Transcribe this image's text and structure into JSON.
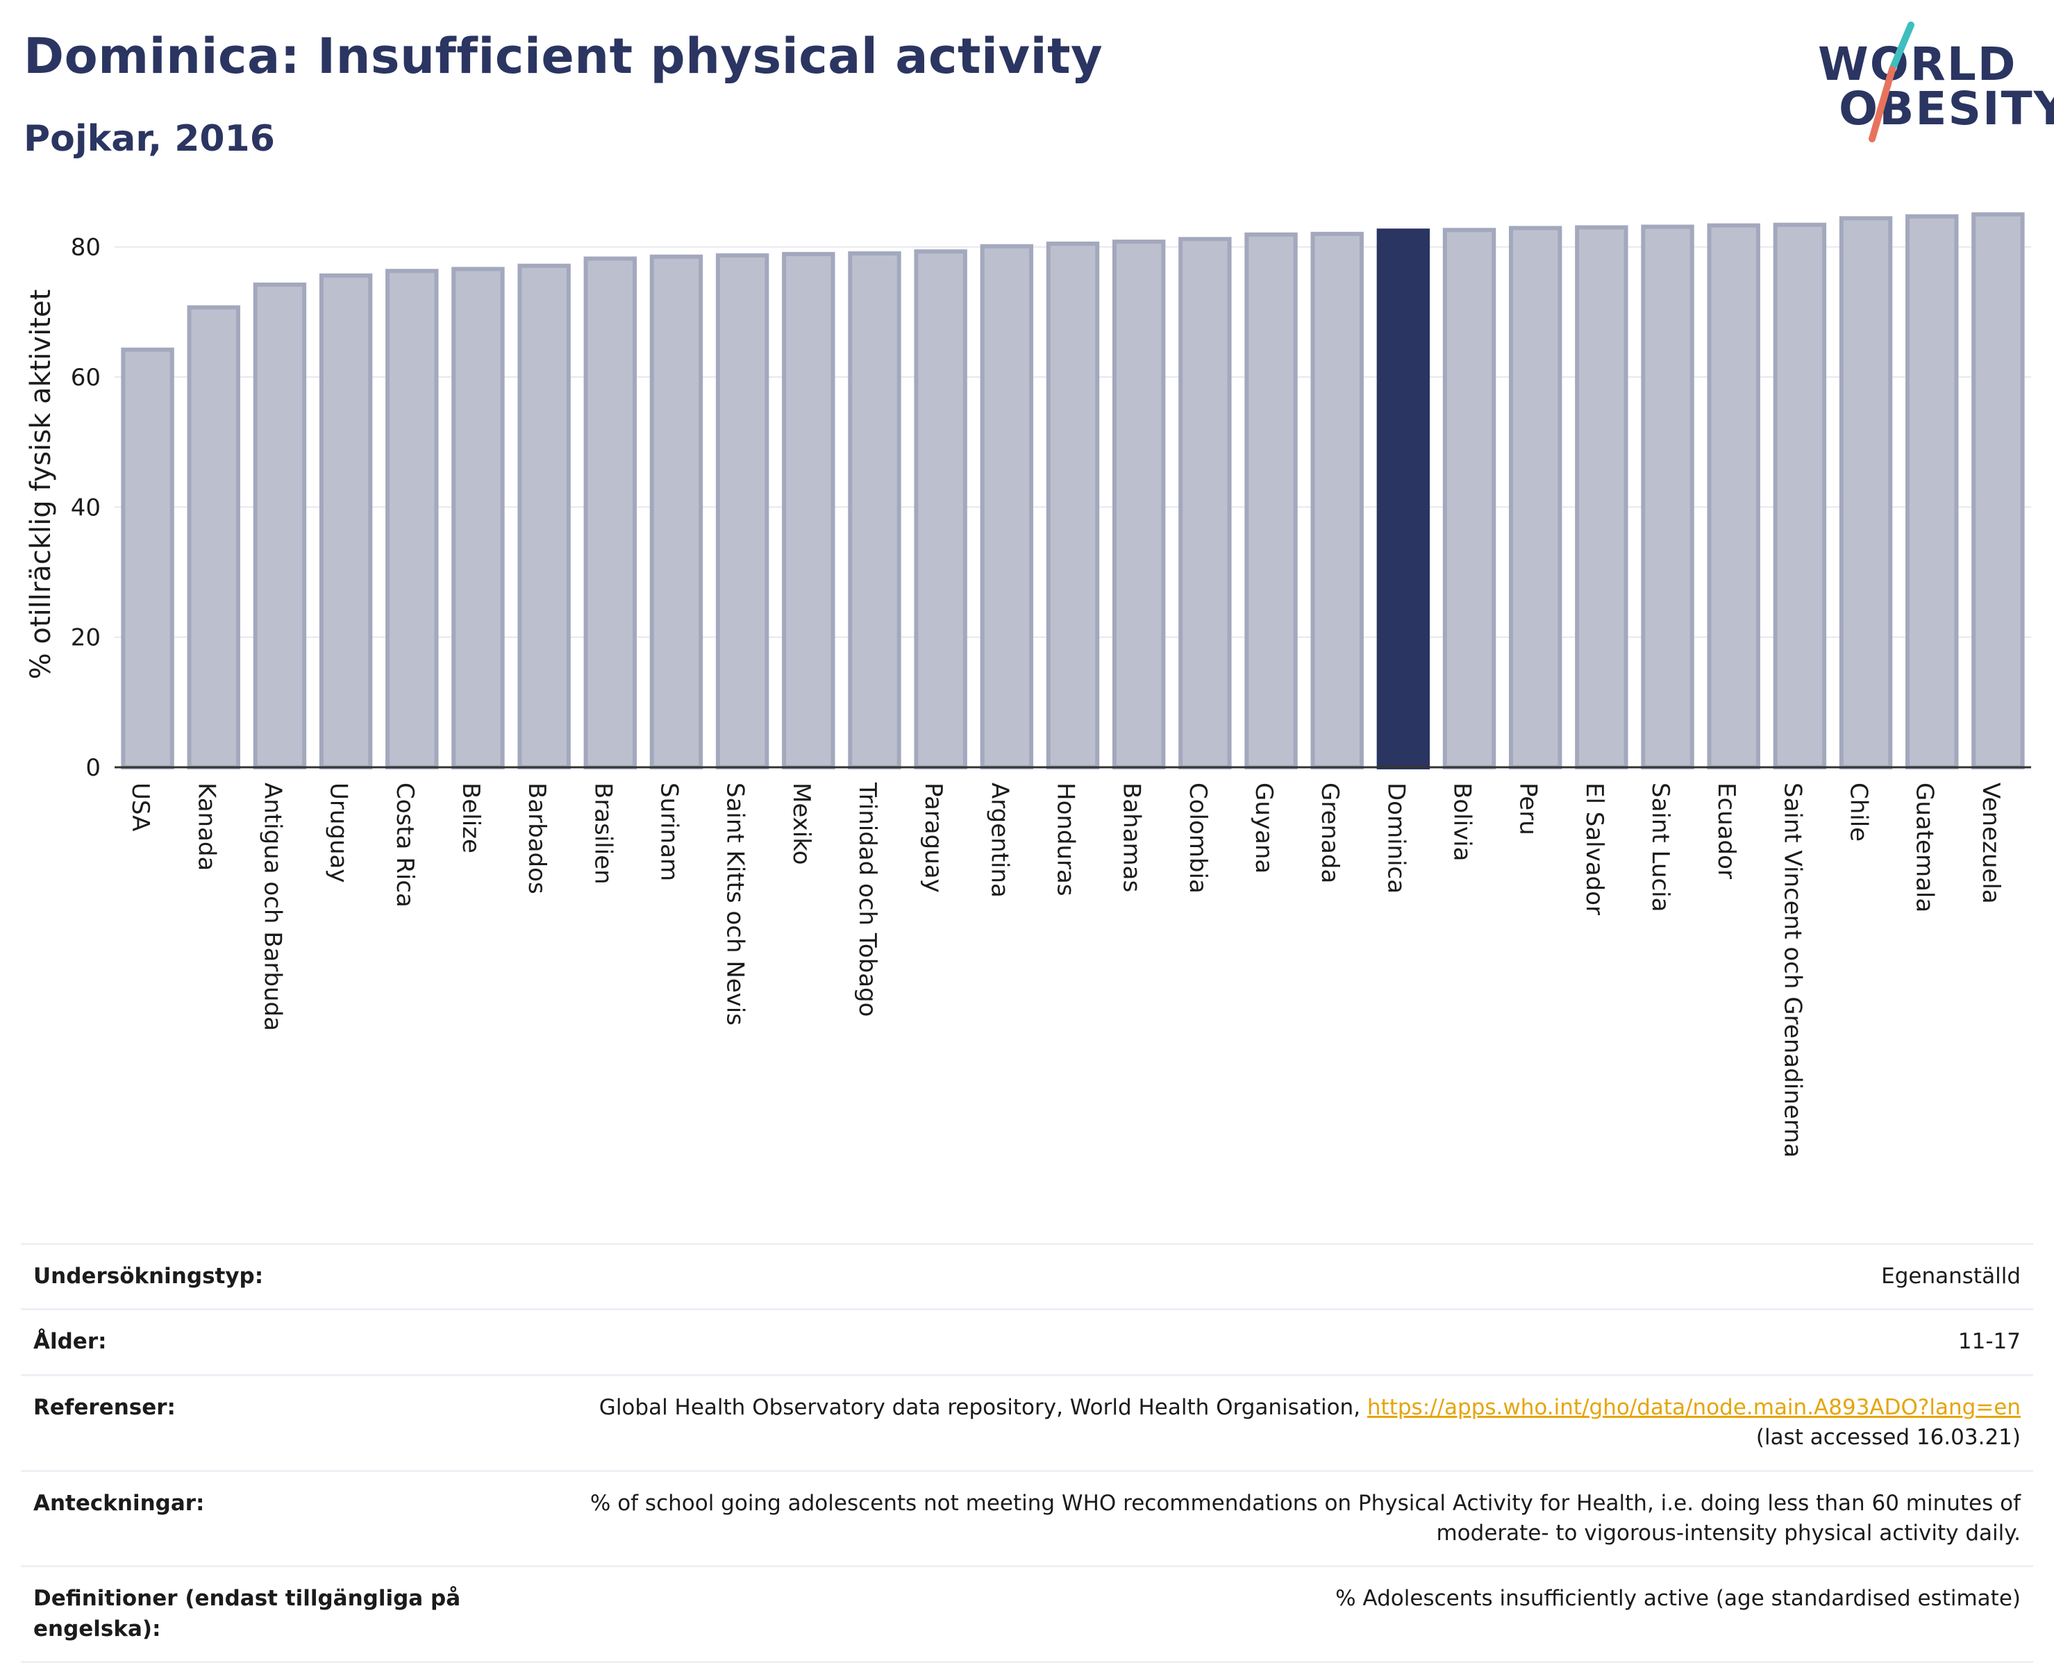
{
  "header": {
    "title": "Dominica: Insufficient physical activity",
    "subtitle": "Pojkar, 2016"
  },
  "logo": {
    "line1": "WORLD",
    "line2": "OBESITY",
    "accent_teal": "#3ebfbd",
    "accent_coral": "#e8735d"
  },
  "colors": {
    "bar": "#bcc0ce",
    "bar_edge": "#a3a8bd",
    "highlight": "#2b3561",
    "grid": "#e6e8ef",
    "axis": "#333333",
    "link": "#e5a50a"
  },
  "chart_data": {
    "type": "bar",
    "title": "Dominica: Insufficient physical activity",
    "subtitle": "Pojkar, 2016",
    "xlabel": "",
    "ylabel": "% otillräcklig fysisk aktivitet",
    "ylim": [
      0,
      87
    ],
    "yticks": [
      0,
      20,
      40,
      60,
      80
    ],
    "grid": true,
    "highlight_category": "Dominica",
    "categories": [
      "USA",
      "Kanada",
      "Antigua och Barbuda",
      "Uruguay",
      "Costa Rica",
      "Belize",
      "Barbados",
      "Brasilien",
      "Surinam",
      "Saint Kitts och Nevis",
      "Mexiko",
      "Trinidad och Tobago",
      "Paraguay",
      "Argentina",
      "Honduras",
      "Bahamas",
      "Colombia",
      "Guyana",
      "Grenada",
      "Dominica",
      "Bolivia",
      "Peru",
      "El Salvador",
      "Saint Lucia",
      "Ecuador",
      "Saint Vincent och Grenadinerna",
      "Chile",
      "Guatemala",
      "Venezuela"
    ],
    "values": [
      64.2,
      70.7,
      74.2,
      75.6,
      76.3,
      76.6,
      77.1,
      78.2,
      78.5,
      78.7,
      78.9,
      79.0,
      79.3,
      80.1,
      80.5,
      80.8,
      81.2,
      81.9,
      82.0,
      82.5,
      82.6,
      82.9,
      83.0,
      83.1,
      83.3,
      83.4,
      84.4,
      84.7,
      85.0
    ]
  },
  "meta": {
    "rows": [
      {
        "label": "Undersökningstyp:",
        "value": "Egenanställd"
      },
      {
        "label": "Ålder:",
        "value": "11-17"
      },
      {
        "label": "Referenser:",
        "value": "Global Health Observatory data repository, World Health Organisation, ",
        "link": "https://apps.who.int/gho/data/node.main.A893ADO?lang=en",
        "value2": "(last accessed 16.03.21)"
      },
      {
        "label": "Anteckningar:",
        "value": "% of school going adolescents not meeting WHO recommendations on Physical Activity for Health, i.e. doing less than 60 minutes of moderate- to vigorous-intensity physical activity daily."
      },
      {
        "label": "Definitioner (endast tillgängliga på engelska):",
        "value": "% Adolescents insufficiently active (age standardised estimate)"
      }
    ]
  }
}
